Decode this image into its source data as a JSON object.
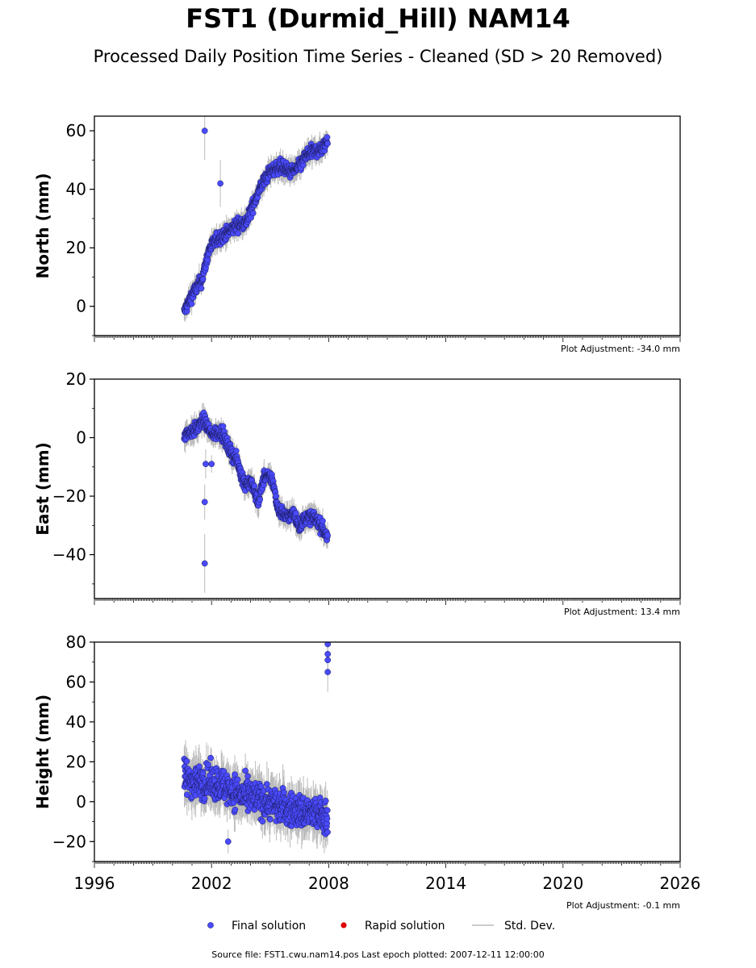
{
  "title": "FST1 (Durmid_Hill) NAM14",
  "subtitle": "Processed Daily Position Time Series - Cleaned (SD > 20 Removed)",
  "source_note": "Source file: FST1.cwu.nam14.pos  Last epoch plotted: 2007-12-11 12:00:00",
  "legend": {
    "final": "Final solution",
    "rapid": "Rapid solution",
    "std": "Std. Dev."
  },
  "colors": {
    "final": "#4a4aff",
    "final_edge": "#1a1a55",
    "rapid": "#dd0000",
    "std": "#bbbbbb"
  },
  "x_axis": {
    "min": 1996,
    "max": 2026,
    "tick_labels": [
      "1996",
      "2002",
      "2008",
      "2014",
      "2020",
      "2026"
    ]
  },
  "chart_data": [
    {
      "type": "scatter",
      "ylabel": "North (mm)",
      "ylim": [
        -10,
        65
      ],
      "ytick_labels": [
        "0",
        "20",
        "40",
        "60"
      ],
      "adjustment": "Plot Adjustment: -34.0 mm",
      "trend": [
        [
          2000.6,
          -2
        ],
        [
          2001.0,
          4
        ],
        [
          2001.5,
          9
        ],
        [
          2001.9,
          20
        ],
        [
          2002.3,
          23
        ],
        [
          2002.8,
          25
        ],
        [
          2003.3,
          28
        ],
        [
          2003.8,
          29
        ],
        [
          2004.2,
          36
        ],
        [
          2004.6,
          42
        ],
        [
          2005.0,
          46
        ],
        [
          2005.5,
          48
        ],
        [
          2006.0,
          46
        ],
        [
          2006.4,
          47
        ],
        [
          2006.9,
          52
        ],
        [
          2007.3,
          53
        ],
        [
          2007.7,
          54
        ],
        [
          2007.95,
          57
        ]
      ],
      "outliers": [
        [
          2001.65,
          60,
          10
        ],
        [
          2002.45,
          42,
          8
        ]
      ]
    },
    {
      "type": "scatter",
      "ylabel": "East (mm)",
      "ylim": [
        -55,
        20
      ],
      "ytick_labels": [
        "−40",
        "−20",
        "0",
        "20"
      ],
      "adjustment": "Plot Adjustment: 13.4 mm",
      "trend": [
        [
          2000.6,
          1
        ],
        [
          2001.2,
          3
        ],
        [
          2001.6,
          6
        ],
        [
          2002.0,
          1
        ],
        [
          2002.5,
          2
        ],
        [
          2002.9,
          -4
        ],
        [
          2003.3,
          -8
        ],
        [
          2003.7,
          -16
        ],
        [
          2004.0,
          -15
        ],
        [
          2004.4,
          -22
        ],
        [
          2004.7,
          -13
        ],
        [
          2005.1,
          -14
        ],
        [
          2005.4,
          -24
        ],
        [
          2005.8,
          -27
        ],
        [
          2006.2,
          -26
        ],
        [
          2006.5,
          -30
        ],
        [
          2006.9,
          -27
        ],
        [
          2007.4,
          -28
        ],
        [
          2007.95,
          -34
        ]
      ],
      "outliers": [
        [
          2001.65,
          -43,
          10
        ],
        [
          2001.65,
          -22,
          6
        ],
        [
          2001.7,
          -9,
          5
        ],
        [
          2002.0,
          -9,
          3
        ]
      ]
    },
    {
      "type": "scatter",
      "ylabel": "Height (mm)",
      "ylim": [
        -30,
        80
      ],
      "ytick_labels": [
        "−20",
        "0",
        "20",
        "40",
        "60",
        "80"
      ],
      "adjustment": "Plot Adjustment: -0.1 mm",
      "trend": [
        [
          2000.6,
          12
        ],
        [
          2001.2,
          10
        ],
        [
          2001.8,
          10
        ],
        [
          2002.4,
          9
        ],
        [
          2003.0,
          6
        ],
        [
          2003.6,
          3
        ],
        [
          2004.2,
          2
        ],
        [
          2004.8,
          0
        ],
        [
          2005.4,
          -2
        ],
        [
          2006.0,
          -4
        ],
        [
          2006.6,
          -5
        ],
        [
          2007.2,
          -6
        ],
        [
          2007.95,
          -8
        ]
      ],
      "outliers": [
        [
          2007.95,
          79,
          8
        ],
        [
          2007.95,
          74,
          8
        ],
        [
          2007.95,
          71,
          8
        ],
        [
          2007.95,
          65,
          10
        ],
        [
          2002.85,
          -20,
          6
        ]
      ]
    }
  ]
}
